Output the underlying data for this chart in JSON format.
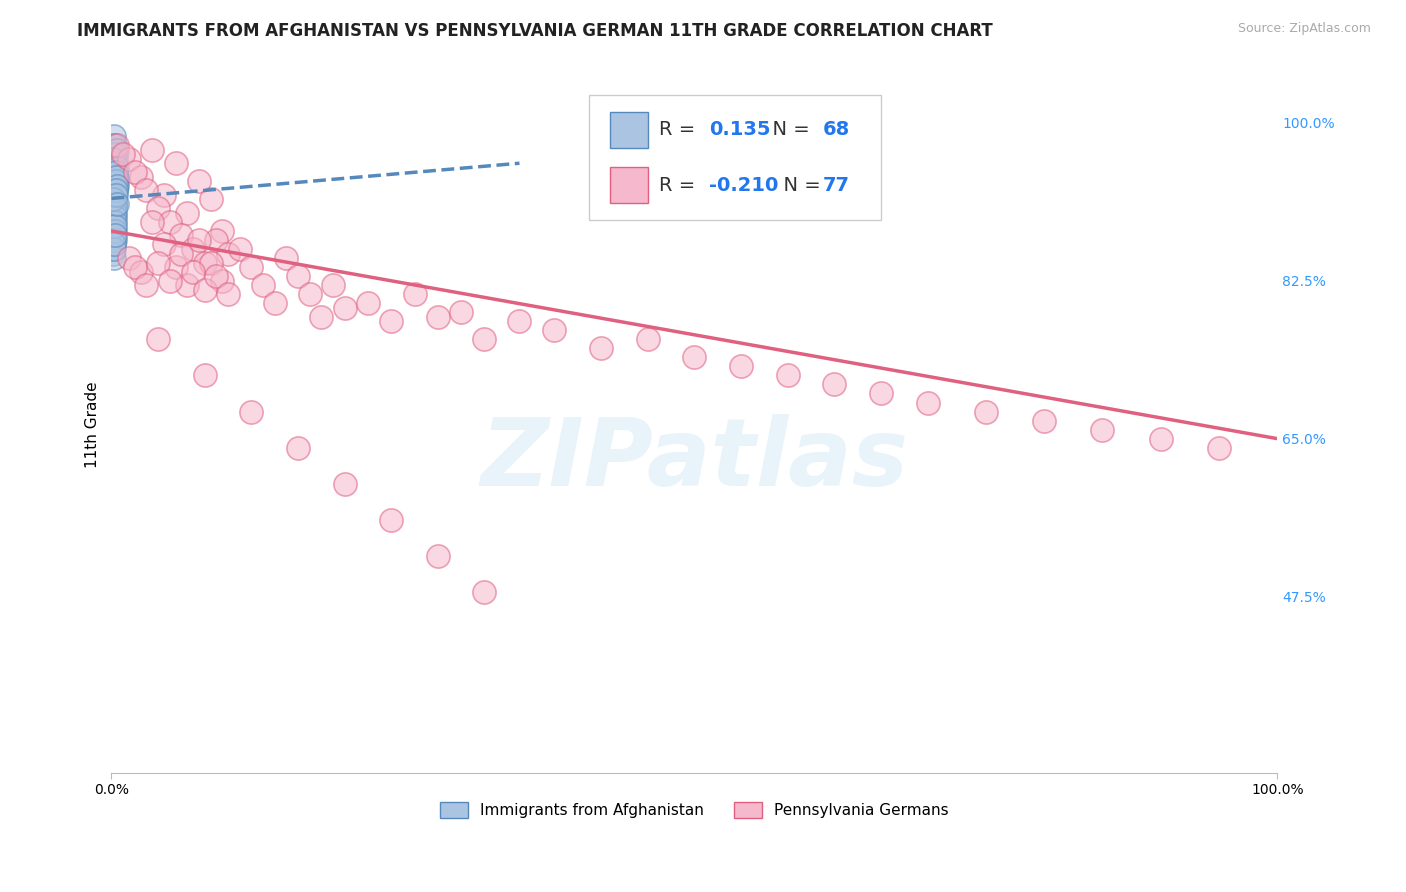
{
  "title": "IMMIGRANTS FROM AFGHANISTAN VS PENNSYLVANIA GERMAN 11TH GRADE CORRELATION CHART",
  "source_text": "Source: ZipAtlas.com",
  "ylabel": "11th Grade",
  "watermark": "ZIPatlas",
  "xlim": [
    0.0,
    1.0
  ],
  "ylim": [
    0.28,
    1.05
  ],
  "xtick_positions": [
    0.0,
    1.0
  ],
  "xtick_labels": [
    "0.0%",
    "100.0%"
  ],
  "ytick_values_right": [
    1.0,
    0.825,
    0.65,
    0.475
  ],
  "ytick_labels_right": [
    "100.0%",
    "82.5%",
    "65.0%",
    "47.5%"
  ],
  "legend_R_blue": "0.135",
  "legend_N_blue": "68",
  "legend_R_pink": "-0.210",
  "legend_N_pink": "77",
  "blue_color": "#aac4e2",
  "blue_edge_color": "#5588bb",
  "pink_color": "#f5b8cc",
  "pink_edge_color": "#e06080",
  "label_blue": "Immigrants from Afghanistan",
  "label_pink": "Pennsylvania Germans",
  "blue_scatter_x": [
    0.001,
    0.002,
    0.001,
    0.003,
    0.002,
    0.004,
    0.003,
    0.002,
    0.001,
    0.003,
    0.002,
    0.004,
    0.003,
    0.005,
    0.002,
    0.001,
    0.004,
    0.003,
    0.002,
    0.005,
    0.003,
    0.002,
    0.004,
    0.001,
    0.003,
    0.002,
    0.005,
    0.004,
    0.003,
    0.002,
    0.001,
    0.004,
    0.003,
    0.002,
    0.005,
    0.003,
    0.004,
    0.002,
    0.001,
    0.003,
    0.002,
    0.004,
    0.001,
    0.003,
    0.002,
    0.004,
    0.003,
    0.002,
    0.001,
    0.003,
    0.004,
    0.002,
    0.003,
    0.001,
    0.005,
    0.003,
    0.002,
    0.004,
    0.003,
    0.002,
    0.001,
    0.003,
    0.002,
    0.004,
    0.003,
    0.002,
    0.005,
    0.003
  ],
  "blue_scatter_y": [
    0.975,
    0.985,
    0.96,
    0.97,
    0.955,
    0.965,
    0.94,
    0.95,
    0.935,
    0.945,
    0.93,
    0.96,
    0.975,
    0.94,
    0.92,
    0.95,
    0.93,
    0.91,
    0.965,
    0.935,
    0.955,
    0.925,
    0.945,
    0.915,
    0.935,
    0.905,
    0.97,
    0.94,
    0.92,
    0.895,
    0.96,
    0.93,
    0.91,
    0.885,
    0.95,
    0.915,
    0.925,
    0.9,
    0.875,
    0.92,
    0.895,
    0.945,
    0.87,
    0.91,
    0.885,
    0.935,
    0.905,
    0.88,
    0.86,
    0.9,
    0.94,
    0.875,
    0.895,
    0.855,
    0.93,
    0.89,
    0.865,
    0.925,
    0.87,
    0.85,
    0.915,
    0.88,
    0.86,
    0.92,
    0.885,
    0.865,
    0.91,
    0.875
  ],
  "pink_scatter_x": [
    0.005,
    0.015,
    0.025,
    0.035,
    0.045,
    0.055,
    0.065,
    0.075,
    0.085,
    0.095,
    0.01,
    0.02,
    0.03,
    0.04,
    0.05,
    0.06,
    0.07,
    0.08,
    0.09,
    0.1,
    0.015,
    0.025,
    0.035,
    0.045,
    0.055,
    0.065,
    0.075,
    0.085,
    0.095,
    0.11,
    0.02,
    0.03,
    0.04,
    0.05,
    0.06,
    0.07,
    0.08,
    0.09,
    0.1,
    0.12,
    0.13,
    0.14,
    0.15,
    0.16,
    0.17,
    0.18,
    0.19,
    0.2,
    0.22,
    0.24,
    0.26,
    0.28,
    0.3,
    0.32,
    0.35,
    0.38,
    0.42,
    0.46,
    0.5,
    0.54,
    0.58,
    0.62,
    0.66,
    0.7,
    0.75,
    0.8,
    0.85,
    0.9,
    0.95,
    0.04,
    0.08,
    0.12,
    0.16,
    0.2,
    0.24,
    0.28,
    0.32
  ],
  "pink_scatter_y": [
    0.975,
    0.96,
    0.94,
    0.97,
    0.92,
    0.955,
    0.9,
    0.935,
    0.915,
    0.88,
    0.965,
    0.945,
    0.925,
    0.905,
    0.89,
    0.875,
    0.86,
    0.845,
    0.87,
    0.855,
    0.85,
    0.835,
    0.89,
    0.865,
    0.84,
    0.82,
    0.87,
    0.845,
    0.825,
    0.86,
    0.84,
    0.82,
    0.845,
    0.825,
    0.855,
    0.835,
    0.815,
    0.83,
    0.81,
    0.84,
    0.82,
    0.8,
    0.85,
    0.83,
    0.81,
    0.785,
    0.82,
    0.795,
    0.8,
    0.78,
    0.81,
    0.785,
    0.79,
    0.76,
    0.78,
    0.77,
    0.75,
    0.76,
    0.74,
    0.73,
    0.72,
    0.71,
    0.7,
    0.69,
    0.68,
    0.67,
    0.66,
    0.65,
    0.64,
    0.76,
    0.72,
    0.68,
    0.64,
    0.6,
    0.56,
    0.52,
    0.48
  ],
  "blue_trend_x": [
    0.0,
    0.35
  ],
  "blue_trend_y": [
    0.916,
    0.955
  ],
  "pink_trend_x": [
    0.0,
    1.0
  ],
  "pink_trend_y": [
    0.88,
    0.65
  ],
  "grid_color": "#cccccc",
  "background_color": "#ffffff",
  "title_fontsize": 12,
  "axis_label_fontsize": 11,
  "tick_fontsize": 10,
  "legend_fontsize": 14
}
